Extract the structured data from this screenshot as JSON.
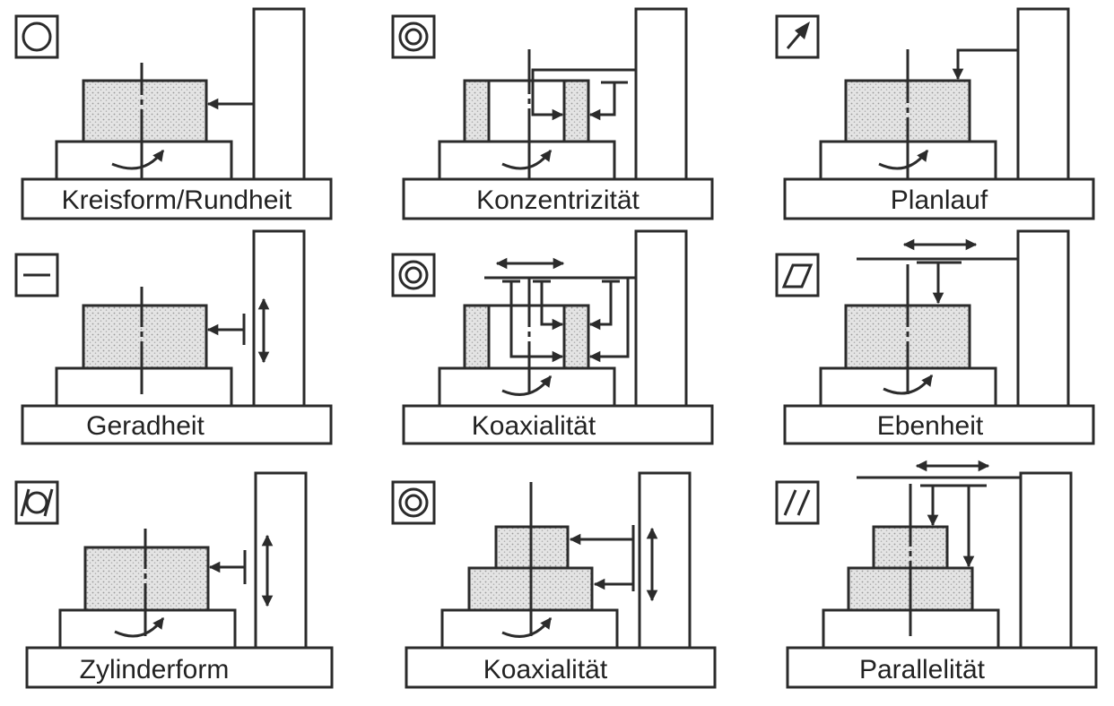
{
  "panels": [
    {
      "label": "Kreisform/Rundheit",
      "symbol": "circle-symbol"
    },
    {
      "label": "Konzentrizität",
      "symbol": "concentric-circles-symbol"
    },
    {
      "label": "Planlauf",
      "symbol": "runout-arrow-symbol"
    },
    {
      "label": "Geradheit",
      "symbol": "straight-line-symbol"
    },
    {
      "label": "Koaxialität",
      "symbol": "concentric-circles-symbol"
    },
    {
      "label": "Ebenheit",
      "symbol": "parallelogram-symbol"
    },
    {
      "label": "Zylinderform",
      "symbol": "cylindricity-symbol"
    },
    {
      "label": "Koaxialität",
      "symbol": "concentric-circles-symbol"
    },
    {
      "label": "Parallelität",
      "symbol": "parallel-lines-symbol"
    }
  ]
}
